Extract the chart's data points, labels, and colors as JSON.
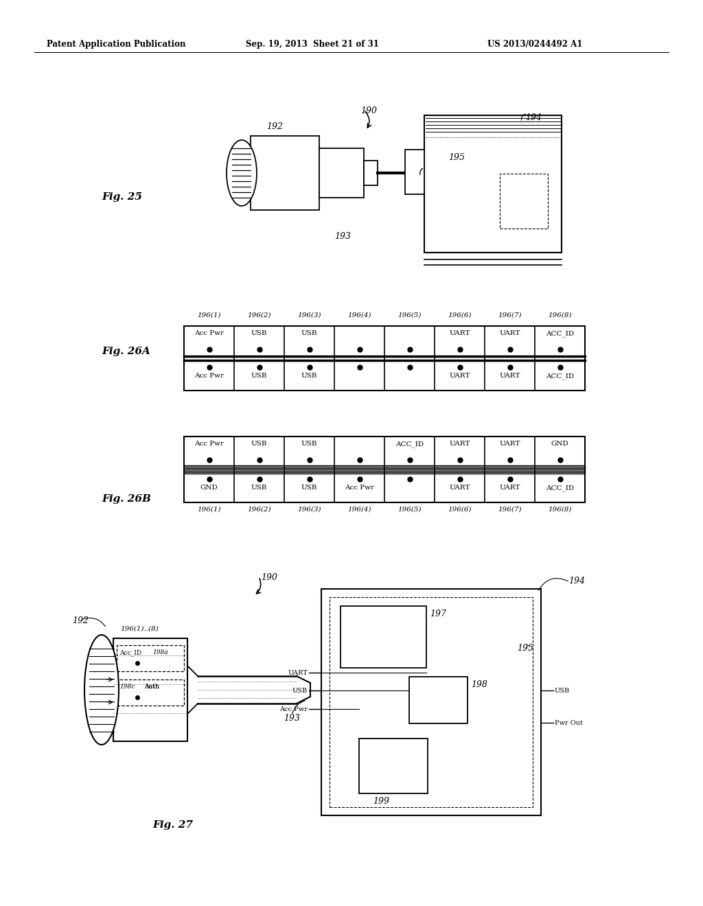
{
  "page_title_left": "Patent Application Publication",
  "page_title_mid": "Sep. 19, 2013  Sheet 21 of 31",
  "page_title_right": "US 2013/0244492 A1",
  "fig25_label": "Fig. 25",
  "fig26a_label": "Fig. 26A",
  "fig26b_label": "Fig. 26B",
  "fig27_label": "Fig. 27",
  "ref_190": "190",
  "ref_192": "192",
  "ref_193": "193",
  "ref_194": "194",
  "ref_195": "195",
  "ref_197": "197",
  "ref_198": "198",
  "ref_199": "199",
  "ref_198a": "198a",
  "ref_198c": "198c",
  "ref_196_range": "196(1)..(8)",
  "col_labels": [
    "196(1)",
    "196(2)",
    "196(3)",
    "196(4)",
    "196(5)",
    "196(6)",
    "196(7)",
    "196(8)"
  ],
  "row26A_top": [
    "Acc Pwr",
    "USB",
    "USB",
    "",
    "",
    "UART",
    "UART",
    "ACC_ID"
  ],
  "row26A_bot": [
    "Acc Pwr",
    "USB",
    "USB",
    "",
    "",
    "UART",
    "UART",
    "ACC_ID"
  ],
  "row26B_top": [
    "Acc Pwr",
    "USB",
    "USB",
    "",
    "ACC_ID",
    "UART",
    "UART",
    "GND"
  ],
  "row26B_bot_labels": [
    "196(1)",
    "196(2)",
    "196(3)",
    "196(4)",
    "196(5)",
    "196(6)",
    "196(7)",
    "196(8)"
  ],
  "row26B_bot": [
    "GND",
    "USB",
    "USB",
    "Acc Pwr",
    "",
    "UART",
    "UART",
    "ACC_ID"
  ],
  "sig_left": [
    "UART",
    "USB",
    "Acc Pwr"
  ],
  "sig_right": [
    "USB",
    "Pwr Out"
  ],
  "acc_id_label": "Acc_ID",
  "auth_label": "Auth",
  "bg_color": "#ffffff"
}
